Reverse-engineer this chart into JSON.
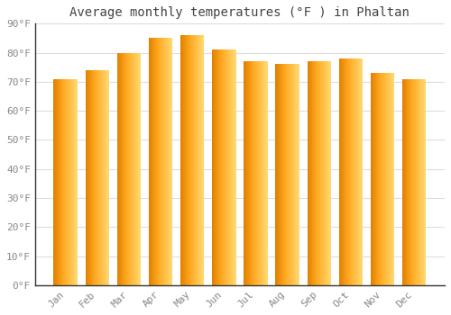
{
  "title": "Average monthly temperatures (°F ) in Phaltan",
  "months": [
    "Jan",
    "Feb",
    "Mar",
    "Apr",
    "May",
    "Jun",
    "Jul",
    "Aug",
    "Sep",
    "Oct",
    "Nov",
    "Dec"
  ],
  "values": [
    71,
    74,
    80,
    85,
    86,
    81,
    77,
    76,
    77,
    78,
    73,
    71
  ],
  "bar_color_center": "#FFA820",
  "bar_color_left": "#E08000",
  "bar_color_right": "#FFD870",
  "ylim": [
    0,
    90
  ],
  "yticks": [
    0,
    10,
    20,
    30,
    40,
    50,
    60,
    70,
    80,
    90
  ],
  "ytick_labels": [
    "0°F",
    "10°F",
    "20°F",
    "30°F",
    "40°F",
    "50°F",
    "60°F",
    "70°F",
    "80°F",
    "90°F"
  ],
  "background_color": "#ffffff",
  "grid_color": "#dddddd",
  "axis_color": "#333333",
  "tick_color": "#888888",
  "title_color": "#444444",
  "title_fontsize": 10,
  "tick_fontsize": 8,
  "bar_width": 0.75
}
